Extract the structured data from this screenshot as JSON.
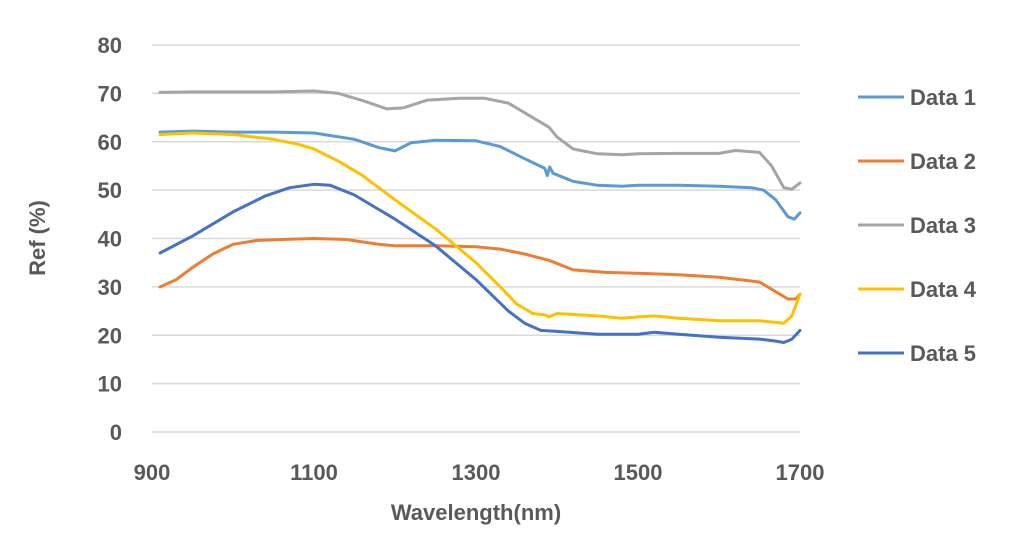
{
  "chart_data": {
    "type": "line",
    "xlabel": "Wavelength(nm)",
    "ylabel": "Ref (%)",
    "xlim": [
      900,
      1700
    ],
    "ylim": [
      0,
      80
    ],
    "xticks": [
      900,
      1100,
      1300,
      1500,
      1700
    ],
    "yticks": [
      0,
      10,
      20,
      30,
      40,
      50,
      60,
      70,
      80
    ],
    "grid": true,
    "legend_position": "right",
    "series": [
      {
        "name": "Data 1",
        "color": "#5B9BD5",
        "x": [
          910,
          950,
          1000,
          1050,
          1100,
          1150,
          1180,
          1200,
          1220,
          1250,
          1300,
          1330,
          1360,
          1385,
          1388,
          1391,
          1395,
          1420,
          1450,
          1480,
          1500,
          1550,
          1600,
          1640,
          1655,
          1670,
          1685,
          1693,
          1700
        ],
        "y": [
          62,
          62.2,
          62,
          62,
          61.8,
          60.5,
          58.8,
          58.1,
          59.8,
          60.3,
          60.2,
          59,
          56.5,
          54.5,
          53,
          54.8,
          53.5,
          51.8,
          51,
          50.8,
          51,
          51,
          50.8,
          50.5,
          50,
          48,
          44.5,
          44,
          45.3
        ]
      },
      {
        "name": "Data 2",
        "color": "#ED7D31",
        "x": [
          910,
          930,
          950,
          975,
          1000,
          1030,
          1060,
          1100,
          1140,
          1180,
          1200,
          1250,
          1300,
          1330,
          1360,
          1390,
          1420,
          1460,
          1500,
          1550,
          1600,
          1650,
          1670,
          1685,
          1695,
          1700
        ],
        "y": [
          30,
          31.5,
          34,
          36.8,
          38.8,
          39.6,
          39.8,
          40,
          39.8,
          38.8,
          38.5,
          38.5,
          38.3,
          37.8,
          36.8,
          35.5,
          33.5,
          33,
          32.8,
          32.5,
          32,
          31,
          29,
          27.5,
          27.5,
          28.5
        ]
      },
      {
        "name": "Data 3",
        "color": "#A5A5A5",
        "x": [
          910,
          950,
          1000,
          1050,
          1100,
          1130,
          1160,
          1190,
          1210,
          1240,
          1280,
          1310,
          1340,
          1370,
          1390,
          1400,
          1420,
          1450,
          1480,
          1500,
          1550,
          1600,
          1620,
          1650,
          1665,
          1680,
          1690,
          1700
        ],
        "y": [
          70.2,
          70.3,
          70.3,
          70.3,
          70.5,
          70,
          68.5,
          66.8,
          67,
          68.6,
          69,
          69,
          68,
          65,
          63,
          61,
          58.5,
          57.5,
          57.3,
          57.5,
          57.6,
          57.6,
          58.2,
          57.8,
          55,
          50.5,
          50.2,
          51.5
        ]
      },
      {
        "name": "Data 4",
        "color": "#FFC000",
        "x": [
          910,
          950,
          1000,
          1050,
          1080,
          1100,
          1130,
          1160,
          1200,
          1250,
          1300,
          1330,
          1350,
          1370,
          1385,
          1390,
          1400,
          1450,
          1480,
          1500,
          1520,
          1550,
          1600,
          1650,
          1680,
          1690,
          1700
        ],
        "y": [
          61.5,
          61.8,
          61.5,
          60.5,
          59.5,
          58.5,
          56,
          53,
          48,
          42,
          35,
          30,
          26.5,
          24.5,
          24.2,
          23.8,
          24.5,
          24,
          23.5,
          23.8,
          24,
          23.5,
          23,
          23,
          22.5,
          24,
          28.5
        ]
      },
      {
        "name": "Data 5",
        "color": "#4472C4",
        "x": [
          910,
          950,
          1000,
          1040,
          1070,
          1100,
          1120,
          1150,
          1180,
          1200,
          1250,
          1300,
          1340,
          1360,
          1380,
          1400,
          1450,
          1500,
          1520,
          1550,
          1600,
          1650,
          1670,
          1680,
          1690,
          1700
        ],
        "y": [
          37,
          40.5,
          45.5,
          48.8,
          50.5,
          51.2,
          51,
          49,
          46,
          44,
          38.5,
          31.5,
          25,
          22.5,
          21,
          20.8,
          20.2,
          20.2,
          20.6,
          20.2,
          19.6,
          19.2,
          18.8,
          18.5,
          19.2,
          21
        ]
      }
    ]
  }
}
